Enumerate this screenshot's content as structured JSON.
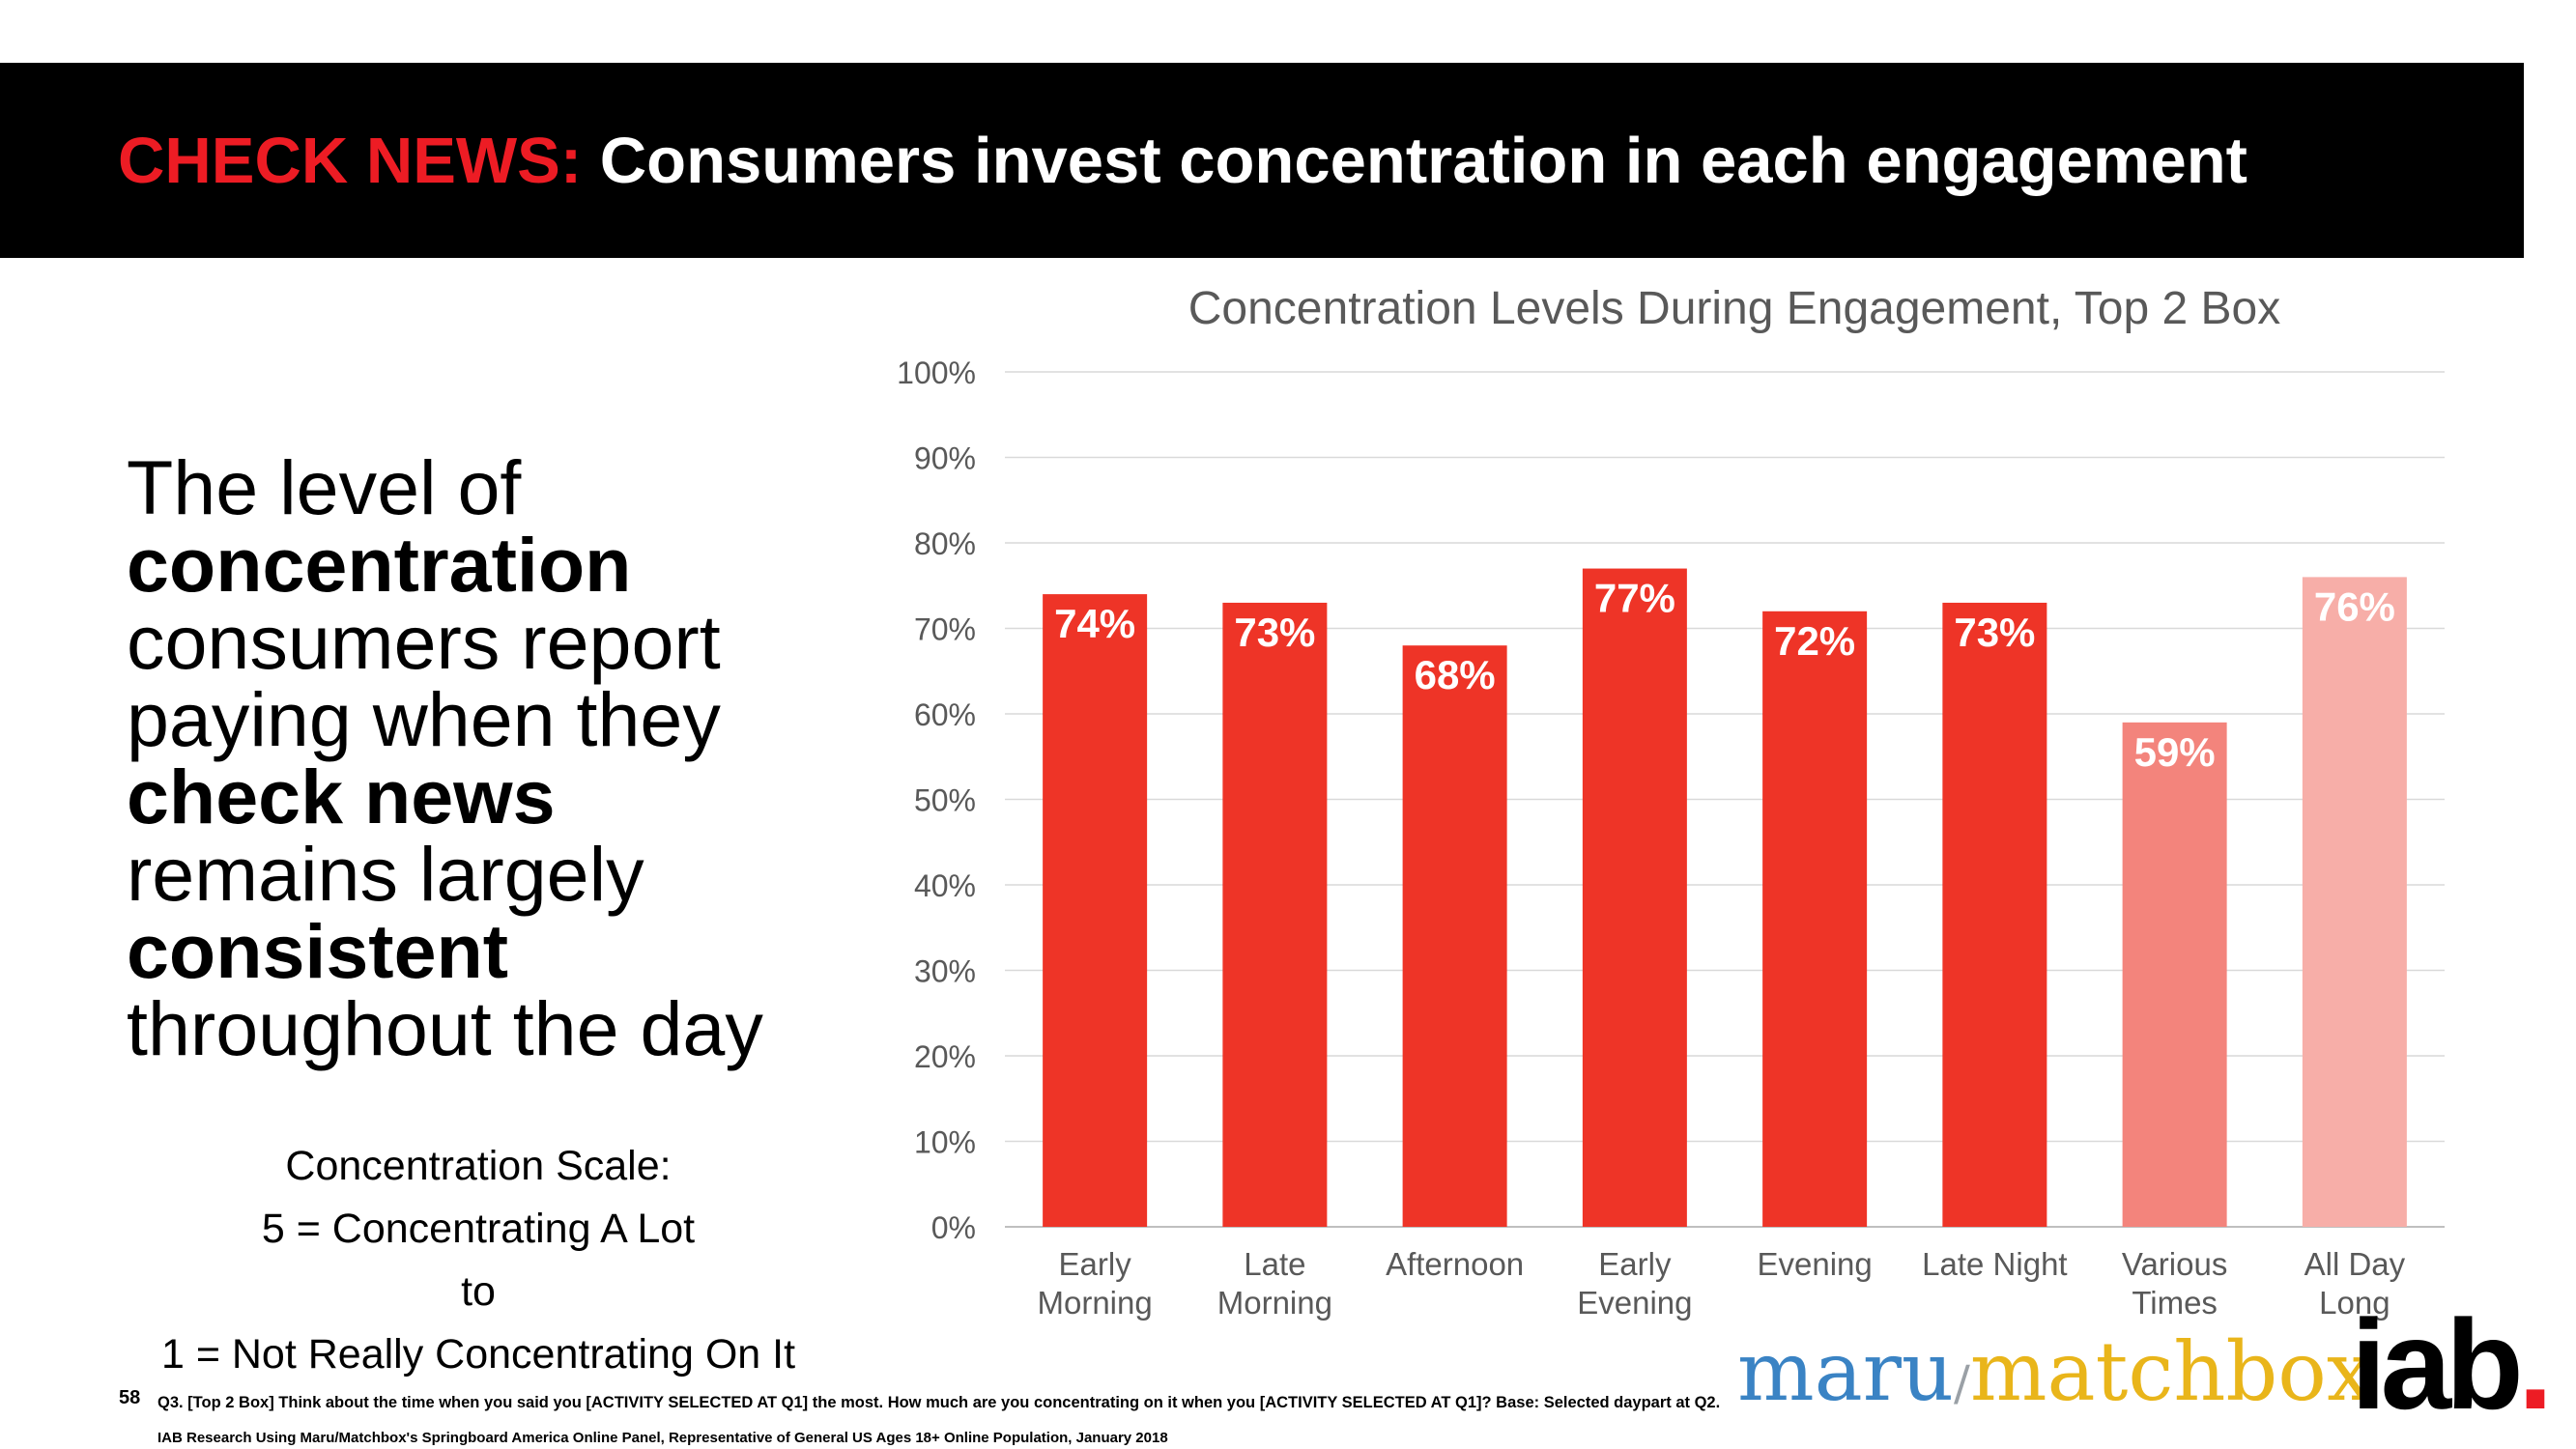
{
  "header": {
    "prefix": "CHECK NEWS:",
    "title": "Consumers invest concentration in each engagement"
  },
  "body_text": [
    {
      "text": "The level of",
      "bold": false
    },
    {
      "text": "concentration",
      "bold": true
    },
    {
      "text": "consumers report",
      "bold": false
    },
    {
      "text": "paying when they",
      "bold": false
    },
    {
      "text": "check news",
      "bold": true
    },
    {
      "text": "remains largely",
      "bold": false
    },
    {
      "text": "consistent",
      "bold": true
    },
    {
      "text": "throughout the day",
      "bold": false
    }
  ],
  "scale": {
    "line1": "Concentration Scale:",
    "line2": "5 = Concentrating A Lot",
    "line3": "to",
    "line4": "1 = Not Really Concentrating On It"
  },
  "chart_data": {
    "type": "bar",
    "title": "Concentration Levels During Engagement, Top 2 Box",
    "categories": [
      [
        "Early",
        "Morning"
      ],
      [
        "Late",
        "Morning"
      ],
      [
        "Afternoon"
      ],
      [
        "Early",
        "Evening"
      ],
      [
        "Evening"
      ],
      [
        "Late Night"
      ],
      [
        "Various",
        "Times"
      ],
      [
        "All Day",
        "Long"
      ]
    ],
    "values": [
      74,
      73,
      68,
      77,
      72,
      73,
      59,
      76
    ],
    "data_labels": [
      "74%",
      "73%",
      "68%",
      "77%",
      "72%",
      "73%",
      "59%",
      "76%"
    ],
    "bar_colors": [
      "#ee3427",
      "#ee3427",
      "#ee3427",
      "#ee3427",
      "#ee3427",
      "#ee3427",
      "#f3847c",
      "#f7aea8"
    ],
    "ylim": [
      0,
      100
    ],
    "yticks": [
      "0%",
      "10%",
      "20%",
      "30%",
      "40%",
      "50%",
      "60%",
      "70%",
      "80%",
      "90%",
      "100%"
    ],
    "grid": true,
    "xlabel": "",
    "ylabel": ""
  },
  "footer": {
    "slide_number": "58",
    "footnote1": "Q3. [Top 2 Box] Think about the time when you said you [ACTIVITY SELECTED AT Q1] the most.  How much are you concentrating on it when you [ACTIVITY SELECTED AT Q1]? Base: Selected daypart at Q2.",
    "footnote2": "IAB Research Using Maru/Matchbox's Springboard America Online Panel, Representative of General US Ages 18+ Online Population, January 2018"
  },
  "logos": {
    "maru_part1": "maru",
    "maru_sep": "/",
    "maru_part2": "matchbox",
    "iab": "iab",
    "iab_dot": "."
  }
}
